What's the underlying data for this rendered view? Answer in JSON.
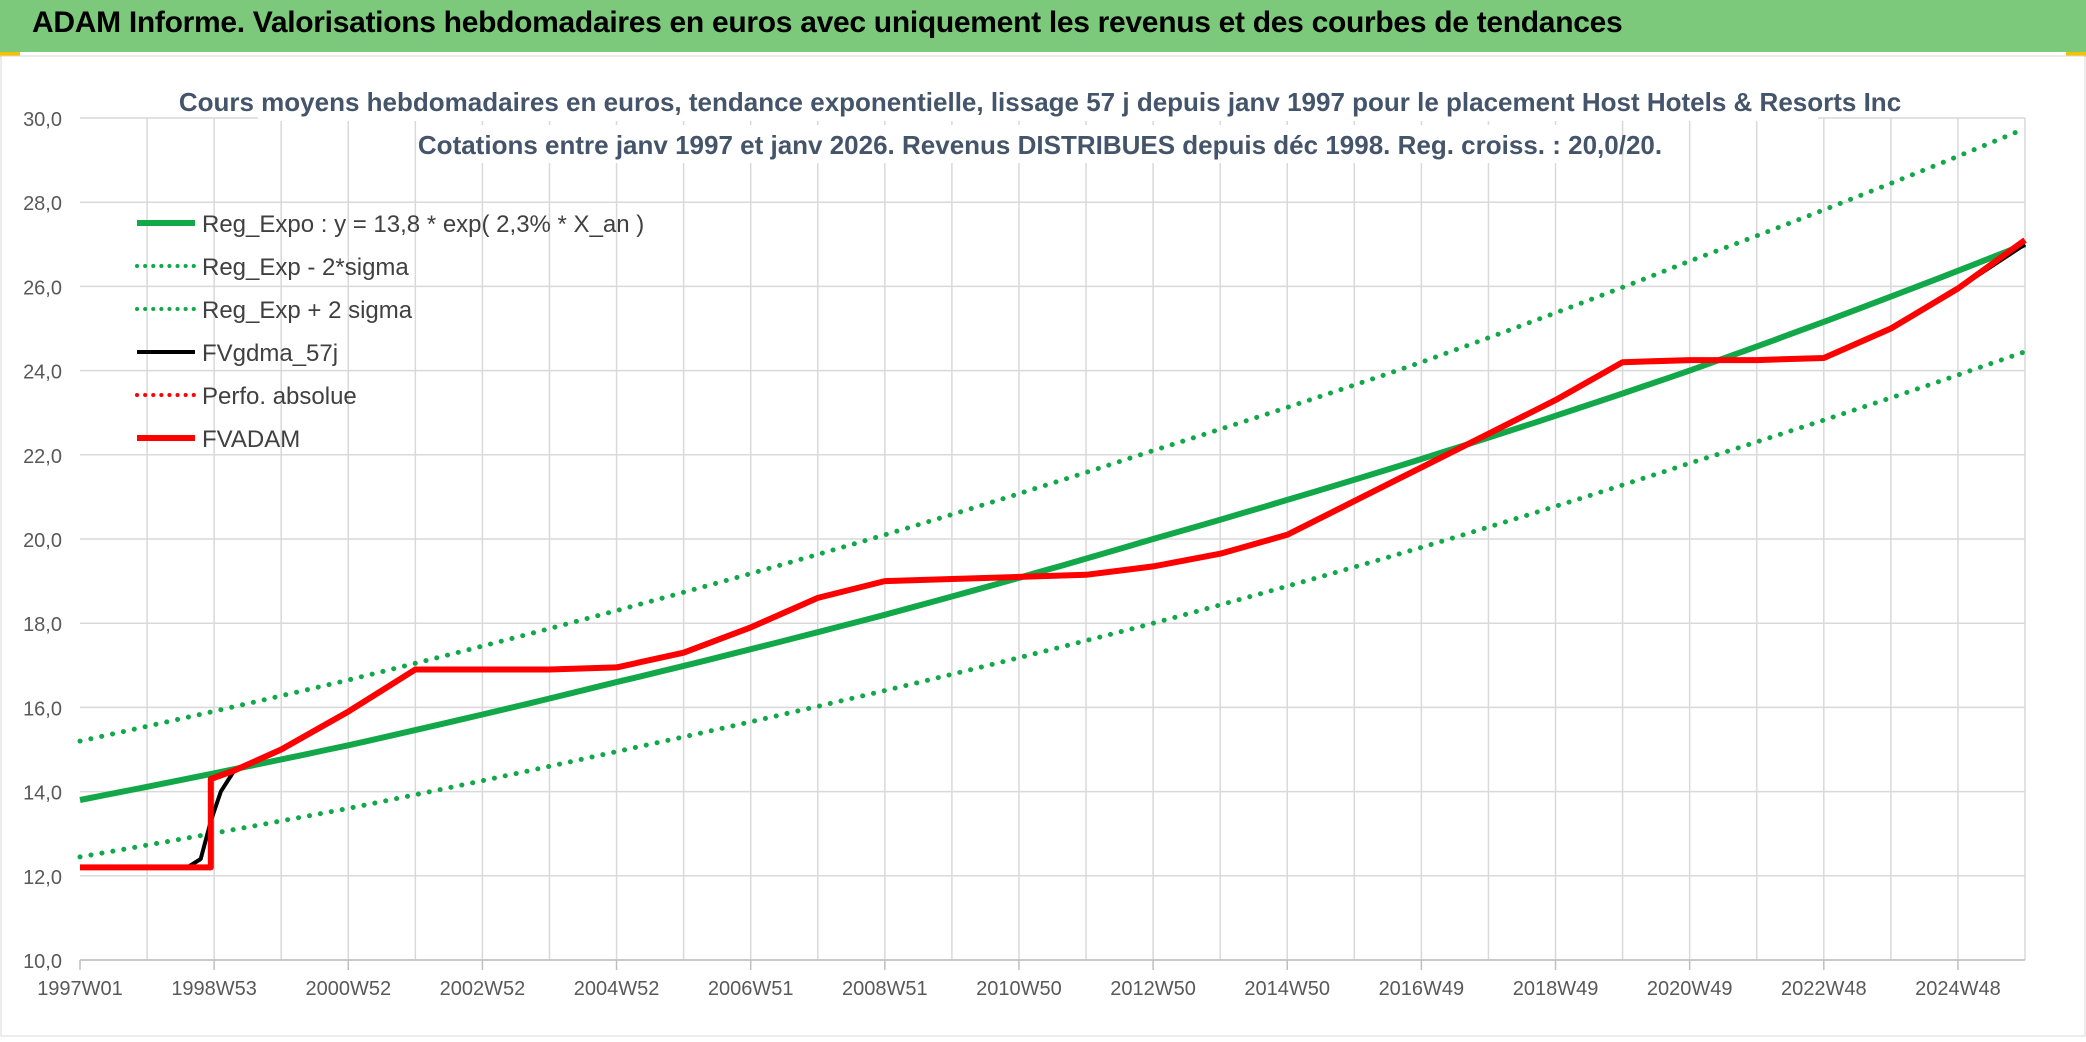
{
  "header": {
    "title": "ADAM Informe. Valorisations hebdomadaires en euros avec uniquement les revenus et des courbes de tendances"
  },
  "colors": {
    "header_bg": "#7cc97c",
    "green": "#12a84a",
    "red": "#ff0000",
    "black": "#000000",
    "grid": "#d9d9d9",
    "corner_accent": "#f2c200"
  },
  "chart_data": {
    "type": "line",
    "title": "Cours moyens hebdomadaires en euros, tendance exponentielle, lissage 57 j depuis janv 1997 pour le placement Host Hotels & Resorts Inc",
    "subtitle": "Cotations entre janv 1997 et janv 2026. Revenus DISTRIBUES depuis déc 1998. Reg. croiss. : 20,0/20.",
    "xlabel": "",
    "ylabel": "",
    "ylim": [
      10,
      30
    ],
    "y_ticks": [
      "10,0",
      "12,0",
      "14,0",
      "16,0",
      "18,0",
      "20,0",
      "22,0",
      "24,0",
      "26,0",
      "28,0",
      "30,0"
    ],
    "x_range": [
      1997.0,
      2026.0
    ],
    "x_ticks": [
      {
        "label": "1997W01",
        "x": 1997.0
      },
      {
        "label": "1998W53",
        "x": 1999.0
      },
      {
        "label": "2000W52",
        "x": 2001.0
      },
      {
        "label": "2002W52",
        "x": 2003.0
      },
      {
        "label": "2004W52",
        "x": 2005.0
      },
      {
        "label": "2006W51",
        "x": 2007.0
      },
      {
        "label": "2008W51",
        "x": 2009.0
      },
      {
        "label": "2010W50",
        "x": 2011.0
      },
      {
        "label": "2012W50",
        "x": 2013.0
      },
      {
        "label": "2014W50",
        "x": 2015.0
      },
      {
        "label": "2016W49",
        "x": 2017.0
      },
      {
        "label": "2018W49",
        "x": 2019.0
      },
      {
        "label": "2020W49",
        "x": 2021.0
      },
      {
        "label": "2022W48",
        "x": 2023.0
      },
      {
        "label": "2024W48",
        "x": 2025.0
      }
    ],
    "grid": true,
    "legend_position": "top-left",
    "series": [
      {
        "name": "Reg_Expo : y = 13,8 * exp( 2,3% *  X_an )",
        "style": "solid",
        "color": "#12a84a",
        "x": [
          1997,
          2001,
          2005,
          2009,
          2013,
          2017,
          2021,
          2026
        ],
        "values": [
          13.8,
          15.1,
          16.6,
          18.2,
          20.0,
          21.9,
          24.0,
          27.0
        ]
      },
      {
        "name": "Reg_Exp - 2*sigma",
        "style": "dotted",
        "color": "#12a84a",
        "x": [
          1997,
          2001,
          2005,
          2009,
          2013,
          2017,
          2021,
          2026
        ],
        "values": [
          12.45,
          13.6,
          14.95,
          16.4,
          18.0,
          19.8,
          21.8,
          24.45
        ]
      },
      {
        "name": "Reg_Exp + 2 sigma",
        "style": "dotted",
        "color": "#12a84a",
        "x": [
          1997,
          2001,
          2005,
          2009,
          2013,
          2017,
          2021,
          2026
        ],
        "values": [
          15.2,
          16.65,
          18.3,
          20.1,
          22.1,
          24.2,
          26.6,
          29.75
        ]
      },
      {
        "name": "FVgdma_57j",
        "style": "solid",
        "color": "#000000",
        "x": [
          1997.0,
          1998.6,
          1998.8,
          1998.95,
          1999.1,
          1999.3,
          2000.0,
          2001.0,
          2002.0,
          2003.0,
          2004.0,
          2005.0,
          2006.0,
          2007.0,
          2008.0,
          2009.0,
          2010.0,
          2011.0,
          2012.0,
          2013.0,
          2014.0,
          2015.0,
          2016.0,
          2017.0,
          2018.0,
          2019.0,
          2020.0,
          2021.0,
          2022.0,
          2023.0,
          2024.0,
          2025.0,
          2026.0
        ],
        "values": [
          12.2,
          12.2,
          12.4,
          13.3,
          14.0,
          14.5,
          15.0,
          15.9,
          16.9,
          16.9,
          16.9,
          16.95,
          17.3,
          17.9,
          18.6,
          19.0,
          19.05,
          19.1,
          19.15,
          19.35,
          19.65,
          20.1,
          20.9,
          21.7,
          22.5,
          23.3,
          24.2,
          24.25,
          24.25,
          24.3,
          25.0,
          25.95,
          27.0
        ]
      },
      {
        "name": "Perfo. absolue",
        "style": "dotted",
        "color": "#ff0000",
        "x": [],
        "values": []
      },
      {
        "name": "FVADAM",
        "style": "solid",
        "color": "#ff0000",
        "x": [
          1997.0,
          1998.95,
          1998.95,
          1999.3,
          2000.0,
          2001.0,
          2002.0,
          2003.0,
          2004.0,
          2005.0,
          2006.0,
          2007.0,
          2008.0,
          2009.0,
          2010.0,
          2011.0,
          2012.0,
          2013.0,
          2014.0,
          2015.0,
          2016.0,
          2017.0,
          2018.0,
          2019.0,
          2020.0,
          2021.0,
          2022.0,
          2023.0,
          2024.0,
          2025.0,
          2026.0
        ],
        "values": [
          12.2,
          12.2,
          14.3,
          14.5,
          15.0,
          15.9,
          16.9,
          16.9,
          16.9,
          16.95,
          17.3,
          17.9,
          18.6,
          19.0,
          19.05,
          19.1,
          19.15,
          19.35,
          19.65,
          20.1,
          20.9,
          21.7,
          22.5,
          23.3,
          24.2,
          24.25,
          24.25,
          24.3,
          25.0,
          25.95,
          27.1
        ]
      }
    ]
  }
}
